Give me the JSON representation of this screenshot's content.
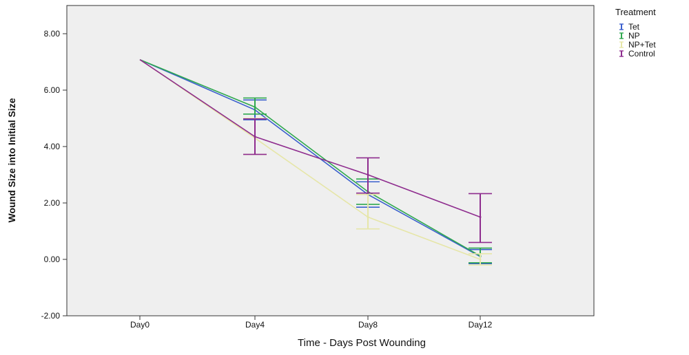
{
  "chart_data": {
    "type": "line",
    "xlabel": "Time - Days Post Wounding",
    "ylabel": "Wound Size into Initial Size",
    "categories": [
      "Day0",
      "Day4",
      "Day8",
      "Day12"
    ],
    "ylim": [
      -2.0,
      9.0
    ],
    "yticks": [
      "-2.00",
      "0.00",
      "2.00",
      "4.00",
      "6.00",
      "8.00"
    ],
    "ytick_values": [
      -2,
      0,
      2,
      4,
      6,
      8
    ],
    "grid": false,
    "legend": {
      "title": "Treatment",
      "placement": "outside-top-right"
    },
    "series": [
      {
        "name": "Tet",
        "color": "#3a5fcd",
        "values": [
          7.08,
          5.3,
          2.3,
          0.1
        ],
        "err_low": [
          7.08,
          4.95,
          1.85,
          -0.15
        ],
        "err_high": [
          7.08,
          5.65,
          2.75,
          0.35
        ]
      },
      {
        "name": "NP",
        "color": "#2fa84f",
        "values": [
          7.08,
          5.4,
          2.4,
          0.12
        ],
        "err_low": [
          7.08,
          5.15,
          1.95,
          -0.12
        ],
        "err_high": [
          7.08,
          5.72,
          2.85,
          0.4
        ]
      },
      {
        "name": "NP+Tet",
        "color": "#e6e6a8",
        "values": [
          7.08,
          4.3,
          1.5,
          0.0
        ],
        "err_low": [
          7.08,
          3.72,
          1.08,
          -0.2
        ],
        "err_high": [
          7.08,
          5.0,
          2.3,
          0.2
        ]
      },
      {
        "name": "Control",
        "color": "#8e2c8e",
        "values": [
          7.08,
          4.35,
          3.0,
          1.5
        ],
        "err_low": [
          7.08,
          3.72,
          2.35,
          0.6
        ],
        "err_high": [
          7.08,
          4.98,
          3.6,
          2.33
        ]
      }
    ]
  }
}
